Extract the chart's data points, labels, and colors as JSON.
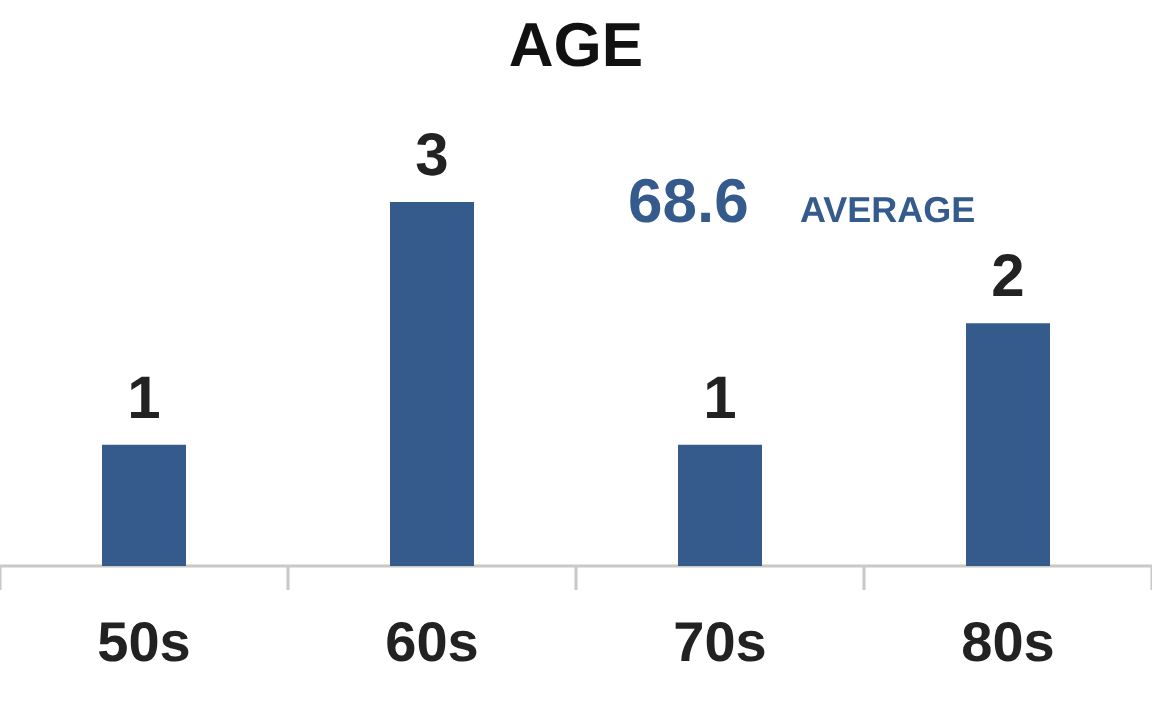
{
  "chart_data": {
    "type": "bar",
    "title": "AGE",
    "categories": [
      "50s",
      "60s",
      "70s",
      "80s"
    ],
    "values": [
      1,
      3,
      1,
      2
    ],
    "color": "#355a8c",
    "data_labels": true,
    "annotations": [
      "68.6",
      "AVERAGE"
    ]
  }
}
